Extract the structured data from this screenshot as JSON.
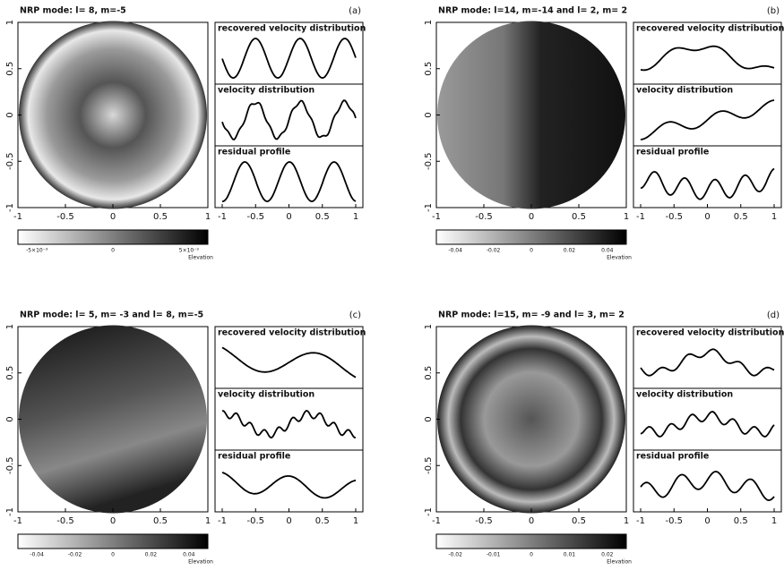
{
  "panels": [
    {
      "title": "NRP mode: l= 8, m=-5",
      "label": "(a)",
      "disk_xticks": [
        "-1",
        "-0.5",
        "0",
        "0.5",
        "1"
      ],
      "disk_yticks": [
        "-1",
        "-0.5",
        "0",
        "0.5",
        "1"
      ],
      "profile_titles": [
        "recovered velocity distribution",
        "velocity distribution",
        "residual profile"
      ],
      "profile_xticks": [
        "-1",
        "-0.5",
        "0",
        "0.5",
        "1"
      ],
      "colorbar_ticks": [
        "-5×10⁻³",
        "0",
        "5×10⁻³"
      ],
      "colorbar_label": "Elevation"
    },
    {
      "title": "NRP mode: l=14, m=-14 and  l= 2, m= 2",
      "label": "(b)",
      "disk_xticks": [
        "-1",
        "-0.5",
        "0",
        "0.5",
        "1"
      ],
      "disk_yticks": [
        "-1",
        "-0.5",
        "0",
        "0.5",
        "1"
      ],
      "profile_titles": [
        "recovered velocity distribution",
        "velocity distribution",
        "residual profile"
      ],
      "profile_xticks": [
        "-1",
        "-0.5",
        "0",
        "0.5",
        "1"
      ],
      "colorbar_ticks": [
        "-0.04",
        "-0.02",
        "0",
        "0.02",
        "0.04"
      ],
      "colorbar_label": "Elevation"
    },
    {
      "title": "NRP mode: l= 5, m= -3 and  l= 8, m=-5",
      "label": "(c)",
      "disk_xticks": [
        "-1",
        "-0.5",
        "0",
        "0.5",
        "1"
      ],
      "disk_yticks": [
        "-1",
        "-0.5",
        "0",
        "0.5",
        "1"
      ],
      "profile_titles": [
        "recovered velocity distribution",
        "velocity distribution",
        "residual profile"
      ],
      "profile_xticks": [
        "-1",
        "-0.5",
        "0",
        "0.5",
        "1"
      ],
      "colorbar_ticks": [
        "-0.04",
        "-0.02",
        "0",
        "0.02",
        "0.04"
      ],
      "colorbar_label": "Elevation"
    },
    {
      "title": "NRP mode: l=15, m= -9 and  l= 3, m= 2",
      "label": "(d)",
      "disk_xticks": [
        "-1",
        "-0.5",
        "0",
        "0.5",
        "1"
      ],
      "disk_yticks": [
        "-1",
        "-0.5",
        "0",
        "0.5",
        "1"
      ],
      "profile_titles": [
        "recovered velocity distribution",
        "velocity distribution",
        "residual profile"
      ],
      "profile_xticks": [
        "-1",
        "-0.5",
        "0",
        "0.5",
        "1"
      ],
      "colorbar_ticks": [
        "-0.02",
        "-0.01",
        "0",
        "0.01",
        "0.02"
      ],
      "colorbar_label": "Elevation"
    }
  ]
}
